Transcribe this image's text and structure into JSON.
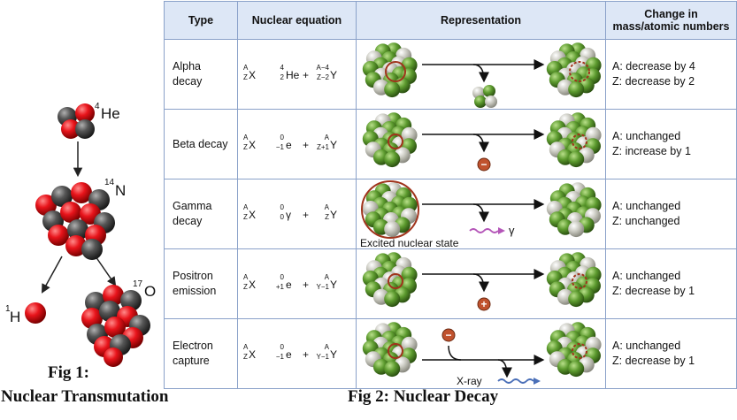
{
  "fig1": {
    "caption_line1": "Fig 1:",
    "caption_line2": "Nuclear Transmutation",
    "helium_label_mass": "4",
    "helium_label_symbol": "He",
    "nitrogen_label_mass": "14",
    "nitrogen_label_symbol": "N",
    "hydrogen_label_mass": "1",
    "hydrogen_label_symbol": "H",
    "oxygen_label_mass": "17",
    "oxygen_label_symbol": "O",
    "colors": {
      "proton": "#e8141b",
      "neutron": "#555555"
    }
  },
  "fig2": {
    "caption": "Fig 2: Nuclear Decay",
    "headers": {
      "type": "Type",
      "equation": "Nuclear equation",
      "representation": "Representation",
      "change_line1": "Change in",
      "change_line2": "mass/atomic numbers"
    },
    "rows": [
      {
        "type_line1": "Alpha decay",
        "type_line2": "",
        "parent": {
          "mass": "A",
          "atomic": "Z",
          "symbol": "X"
        },
        "emitted": {
          "mass": "4",
          "atomic": "2",
          "symbol": "He"
        },
        "daughter": {
          "mass": "A−4",
          "atomic": "Z−2",
          "symbol": "Y"
        },
        "particle": "alpha",
        "particle_label": "",
        "rep_label": "",
        "change_a": "A: decrease by 4",
        "change_z": "Z: decrease by 2"
      },
      {
        "type_line1": "Beta decay",
        "type_line2": "",
        "parent": {
          "mass": "A",
          "atomic": "Z",
          "symbol": "X"
        },
        "emitted": {
          "mass": "0",
          "atomic": "−1",
          "symbol": "e"
        },
        "daughter": {
          "mass": "A",
          "atomic": "Z+1",
          "symbol": "Y"
        },
        "particle": "electron",
        "particle_label": "",
        "rep_label": "",
        "change_a": "A: unchanged",
        "change_z": "Z: increase by 1"
      },
      {
        "type_line1": "Gamma",
        "type_line2": "decay",
        "parent": {
          "mass": "A",
          "atomic": "Z",
          "symbol": "X"
        },
        "emitted": {
          "mass": "0",
          "atomic": "0",
          "symbol": "γ"
        },
        "daughter": {
          "mass": "A",
          "atomic": "Z",
          "symbol": "Y"
        },
        "particle": "gamma",
        "particle_label": "γ",
        "rep_label": "Excited nuclear state",
        "change_a": "A: unchanged",
        "change_z": "Z: unchanged"
      },
      {
        "type_line1": "Positron",
        "type_line2": "emission",
        "parent": {
          "mass": "A",
          "atomic": "Z",
          "symbol": "X"
        },
        "emitted": {
          "mass": "0",
          "atomic": "+1",
          "symbol": "e"
        },
        "daughter": {
          "mass": "A",
          "atomic": "Y−1",
          "symbol": "Y"
        },
        "particle": "positron",
        "particle_label": "",
        "rep_label": "",
        "change_a": "A: unchanged",
        "change_z": "Z: decrease by 1"
      },
      {
        "type_line1": "Electron",
        "type_line2": "capture",
        "parent": {
          "mass": "A",
          "atomic": "Z",
          "symbol": "X"
        },
        "emitted": {
          "mass": "0",
          "atomic": "−1",
          "symbol": "e"
        },
        "daughter": {
          "mass": "A",
          "atomic": "Y−1",
          "symbol": "Y"
        },
        "particle": "capture",
        "particle_label": "X-ray",
        "rep_label": "",
        "change_a": "A: unchanged",
        "change_z": "Z: decrease by 1"
      }
    ],
    "colors": {
      "proton_green": "#5c9a2e",
      "neutron_grey": "#c9c9c0",
      "highlight": "#a0341c",
      "electron": "#c0522e",
      "gamma_wave": "#b455b8",
      "xray_wave": "#4a6fb8",
      "header_bg": "#dde7f6",
      "border": "#8aa1c9"
    }
  }
}
